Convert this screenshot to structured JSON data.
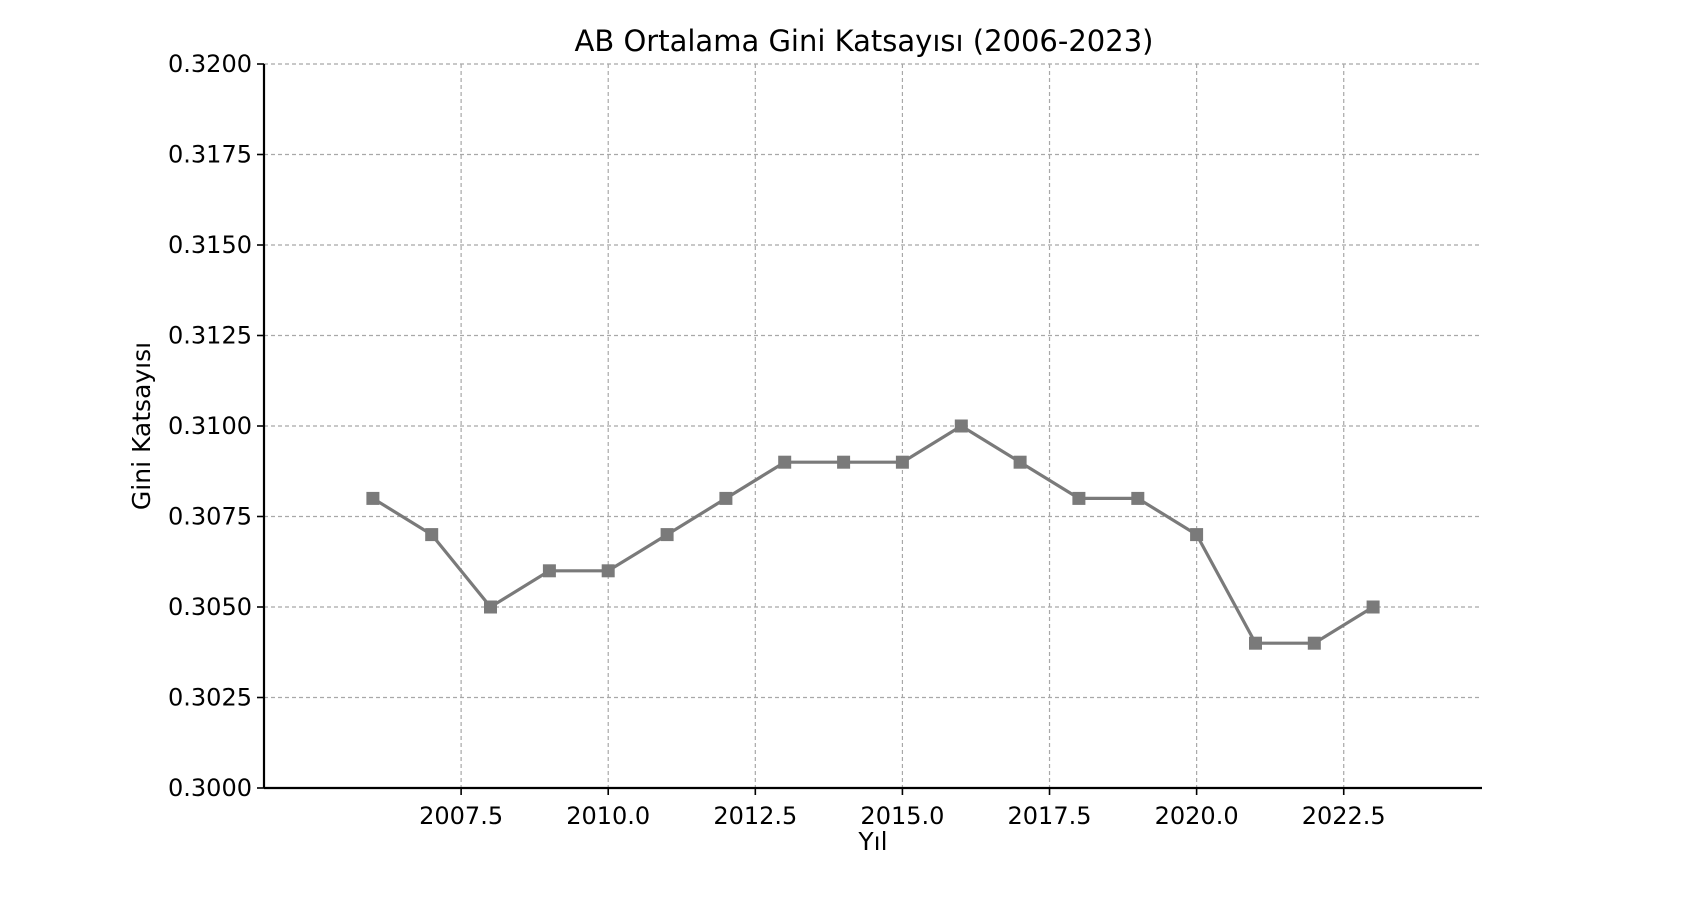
{
  "chart_data": {
    "type": "line",
    "title": "AB Ortalama Gini Katsayısı (2006-2023)",
    "xlabel": "Yıl",
    "ylabel": "Gini Katsayısı",
    "xlim": [
      2004.15,
      2024.85
    ],
    "ylim": [
      0.3,
      0.32
    ],
    "x_ticks": [
      2007.5,
      2010.0,
      2012.5,
      2015.0,
      2017.5,
      2020.0,
      2022.5
    ],
    "x_tick_labels": [
      "2007.5",
      "2010.0",
      "2012.5",
      "2015.0",
      "2017.5",
      "2020.0",
      "2022.5"
    ],
    "y_ticks": [
      0.3,
      0.3025,
      0.305,
      0.3075,
      0.31,
      0.3125,
      0.315,
      0.3175,
      0.32
    ],
    "y_tick_labels": [
      "0.3000",
      "0.3025",
      "0.3050",
      "0.3075",
      "0.3100",
      "0.3125",
      "0.3150",
      "0.3175",
      "0.3200"
    ],
    "grid": true,
    "marker": "square",
    "line_color": "#7a7a7a",
    "series": [
      {
        "x": [
          2006,
          2007,
          2008,
          2009,
          2010,
          2011,
          2012,
          2013,
          2014,
          2015,
          2016,
          2017,
          2018,
          2019,
          2020,
          2021,
          2022,
          2023
        ],
        "values": [
          0.308,
          0.307,
          0.305,
          0.306,
          0.306,
          0.307,
          0.308,
          0.309,
          0.309,
          0.309,
          0.31,
          0.309,
          0.308,
          0.308,
          0.307,
          0.304,
          0.304,
          0.305
        ]
      }
    ]
  }
}
